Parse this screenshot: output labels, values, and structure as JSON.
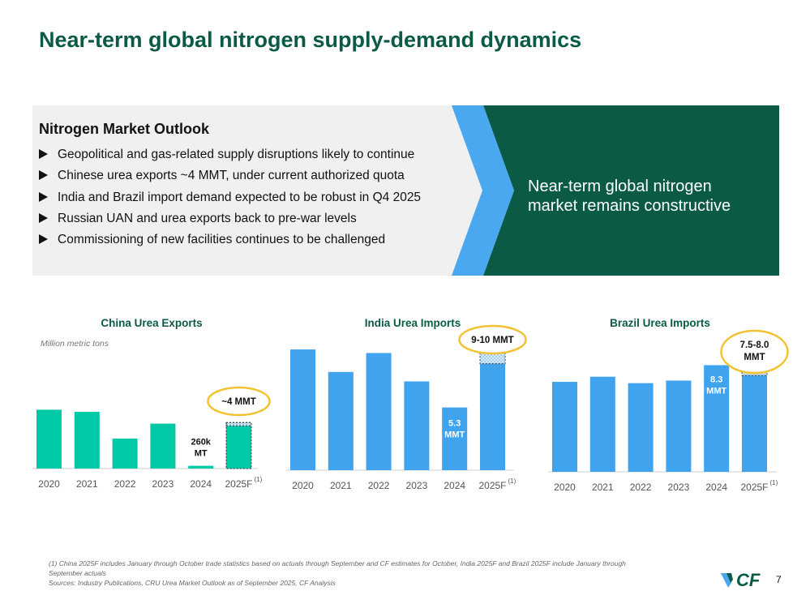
{
  "slide": {
    "title": "Near-term global nitrogen supply-demand dynamics",
    "page_number": "7"
  },
  "outlook": {
    "heading": "Nitrogen Market Outlook",
    "bullets": [
      "Geopolitical and gas-related supply disruptions likely to continue",
      "Chinese urea exports ~4 MMT, under current authorized quota",
      "India and Brazil import demand expected to be robust in Q4 2025",
      "Russian UAN and urea exports back to pre-war levels",
      "Commissioning of new facilities continues to be challenged"
    ],
    "callout_line1": "Near-term global nitrogen",
    "callout_line2": "market remains constructive"
  },
  "colors": {
    "brand_green": "#0b5a45",
    "panel_gray": "#f0f0f0",
    "chevron_blue": "#4aa8f0",
    "china_teal": "#00c9a7",
    "bar_blue": "#3fa3ee",
    "highlight_yellow": "#f2c230"
  },
  "units_label": "Million metric tons",
  "chart_data": [
    {
      "type": "bar",
      "title": "China Urea Exports",
      "ylabel": "Million metric tons",
      "categories": [
        "2020",
        "2021",
        "2022",
        "2023",
        "2024",
        "2025F"
      ],
      "values": [
        5.5,
        5.3,
        2.8,
        4.2,
        0.26,
        4.0
      ],
      "ylim": [
        0,
        10
      ],
      "forecast_range": [
        4.0,
        4.3
      ],
      "bar_labels": {
        "2024": [
          "260k",
          "MT"
        ]
      },
      "callout": "~4 MMT",
      "footnote_marker": "(1)"
    },
    {
      "type": "bar",
      "title": "India Urea Imports",
      "categories": [
        "2020",
        "2021",
        "2022",
        "2023",
        "2024",
        "2025F"
      ],
      "values": [
        10.2,
        8.3,
        9.9,
        7.5,
        5.3,
        9.0
      ],
      "ylim": [
        0,
        10.5
      ],
      "forecast_range": [
        9.0,
        10.0
      ],
      "bar_labels": {
        "2024": [
          "5.3",
          "MMT"
        ]
      },
      "callout": "9-10 MMT",
      "footnote_marker": "(1)"
    },
    {
      "type": "bar",
      "title": "Brazil Urea Imports",
      "categories": [
        "2020",
        "2021",
        "2022",
        "2023",
        "2024",
        "2025F"
      ],
      "values": [
        7.0,
        7.4,
        6.9,
        7.1,
        8.3,
        7.5
      ],
      "ylim": [
        0,
        10.5
      ],
      "forecast_range": [
        7.5,
        8.0
      ],
      "bar_labels": {
        "2024": [
          "8.3",
          "MMT"
        ]
      },
      "callout_lines": [
        "7.5-8.0",
        "MMT"
      ],
      "footnote_marker": "(1)"
    }
  ],
  "footnotes": {
    "note1_line1": "(1) China 2025F includes January through October trade statistics based on actuals through September and CF estimates for October, India 2025F and Brazil 2025F include January through",
    "note1_line2": "September actuals",
    "sources": "Sources: Industry Publications, CRU Urea Market Outlook as of September 2025, CF Analysis"
  },
  "logo": {
    "text": "CF",
    "mark": "cf-chevron-mark"
  }
}
